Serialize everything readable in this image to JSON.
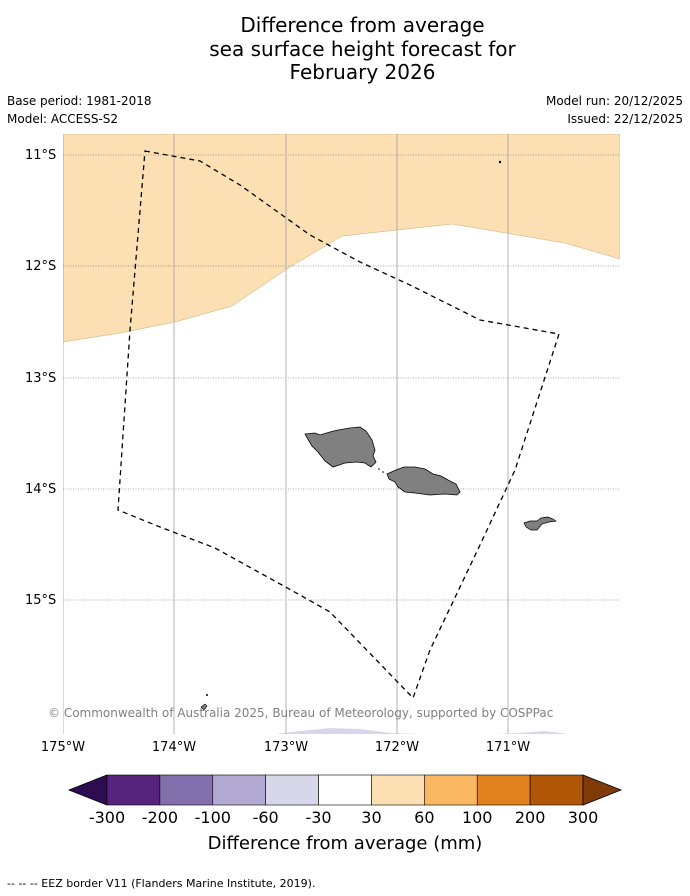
{
  "title": {
    "line1": "Difference from average",
    "line2": "sea surface height forecast for",
    "line3": "February 2026"
  },
  "meta": {
    "base_period": "Base period: 1981-2018",
    "model": "Model: ACCESS-S2",
    "model_run": "Model run: 20/12/2025",
    "issued": "Issued: 22/12/2025"
  },
  "map": {
    "region": "Samoa",
    "lat_labels": [
      "11°S",
      "12°S",
      "13°S",
      "14°S",
      "15°S"
    ],
    "lon_labels": [
      "175°W",
      "174°W",
      "173°W",
      "172°W",
      "171°W"
    ],
    "lat_range": [
      -16.2,
      -10.8
    ],
    "lon_range": [
      -175.0,
      -170.0
    ],
    "fill_color_30_60": "#FDDFB4",
    "land_color": "#808080",
    "copyright": "© Commonwealth of Australia 2025, Bureau of Meteorology, supported by COSPPac"
  },
  "colorbar": {
    "tick_labels": [
      "-300",
      "-200",
      "-100",
      "-60",
      "-30",
      "30",
      "60",
      "100",
      "200",
      "300"
    ],
    "colors": [
      "#2E0C52",
      "#56247D",
      "#8270AD",
      "#B2A9D2",
      "#D8D7EA",
      "#FFFFFF",
      "#FDDFB4",
      "#FBB862",
      "#E0821D",
      "#B15506",
      "#7F3A08"
    ],
    "label": "Difference from average (mm)"
  },
  "footer": {
    "legend": "--  --  -- EEZ border V11 (Flanders Marine Institute, 2019)."
  }
}
